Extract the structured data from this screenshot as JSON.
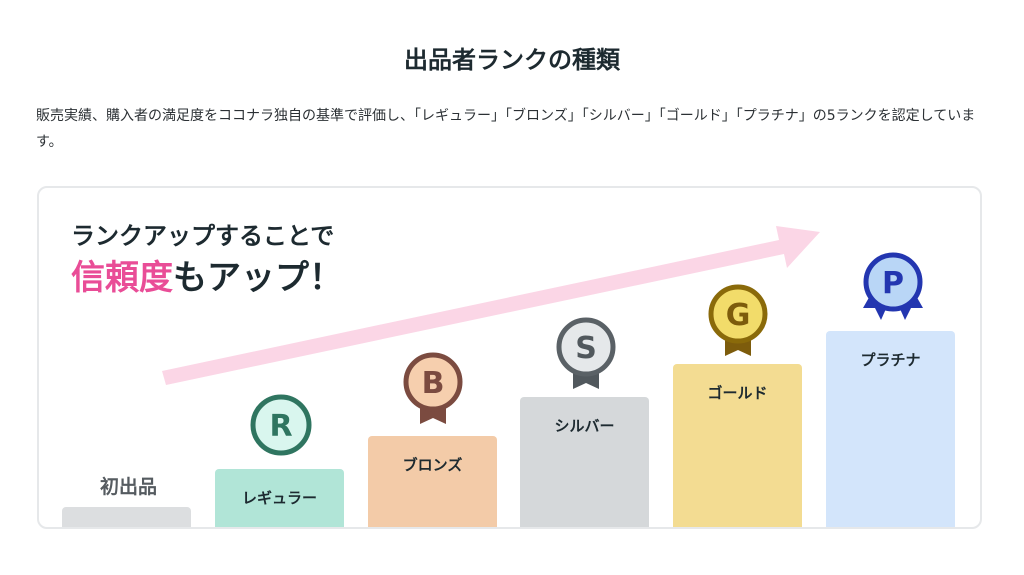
{
  "title": "出品者ランクの種類",
  "description": "販売実績、購入者の満足度をココナラ独自の基準で評価し、「レギュラー」「ブロンズ」「シルバー」「ゴールド」「プラチナ」の5ランクを認定しています。",
  "headline": {
    "line1": "ランクアップすることで",
    "highlight": "信頼度",
    "rest": "もアップ！"
  },
  "colors": {
    "accent_pink": "#e94d97",
    "arrow": "#fbd6e6"
  },
  "ranks": [
    {
      "label": "初出品",
      "color": "#dcdee0"
    },
    {
      "label": "レギュラー",
      "letter": "R",
      "color": "#b1e5d7",
      "icon": "regular-badge-icon"
    },
    {
      "label": "ブロンズ",
      "letter": "B",
      "color": "#f3cba8",
      "icon": "bronze-medal-icon"
    },
    {
      "label": "シルバー",
      "letter": "S",
      "color": "#d5d8da",
      "icon": "silver-medal-icon"
    },
    {
      "label": "ゴールド",
      "letter": "G",
      "color": "#f3dc92",
      "icon": "gold-medal-icon"
    },
    {
      "label": "プラチナ",
      "letter": "P",
      "color": "#d3e5fb",
      "icon": "platinum-medal-icon"
    }
  ]
}
